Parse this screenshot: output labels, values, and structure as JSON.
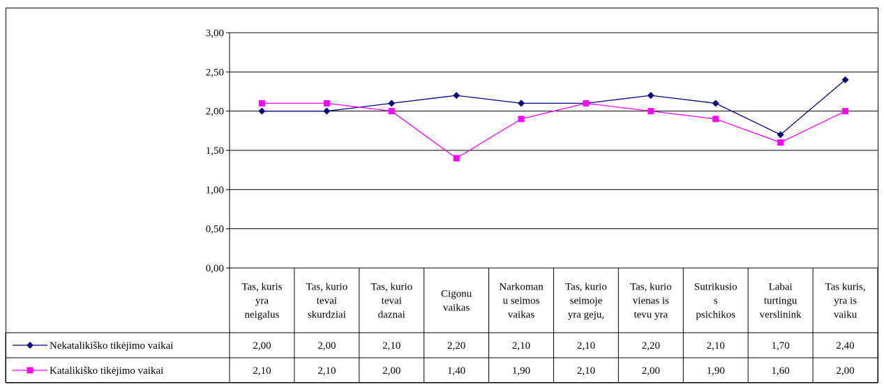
{
  "chart_data": {
    "type": "line",
    "title": "",
    "xlabel": "",
    "ylabel": "",
    "ylim": [
      0,
      3
    ],
    "yticks": [
      "0,00",
      "0,50",
      "1,00",
      "1,50",
      "2,00",
      "2,50",
      "3,00"
    ],
    "grid": true,
    "legend": "data-table-left",
    "categories": [
      [
        "Tas, kuris",
        "yra",
        "neigalus"
      ],
      [
        "Tas, kurio",
        "tevai",
        "skurdziai"
      ],
      [
        "Tas, kurio",
        "tevai",
        "daznai"
      ],
      [
        "Cigonu",
        "vaikas"
      ],
      [
        "Narkoman",
        "u seimos",
        "vaikas"
      ],
      [
        "Tas, kurio",
        "seimoje",
        "yra geju,"
      ],
      [
        "Tas, kurio",
        "vienas is",
        "tevu yra"
      ],
      [
        "Sutrikusio",
        "s",
        "psichikos"
      ],
      [
        "Labai",
        "turtingu",
        "verslinink"
      ],
      [
        "Tas kuris,",
        "yra is",
        "vaiku"
      ]
    ],
    "series": [
      {
        "name": "Nekatalikiško tikėjimo vaikai",
        "color": "#000080",
        "marker": "diamond",
        "values": [
          2.0,
          2.0,
          2.1,
          2.2,
          2.1,
          2.1,
          2.2,
          2.1,
          1.7,
          2.4
        ],
        "labels": [
          "2,00",
          "2,00",
          "2,10",
          "2,20",
          "2,10",
          "2,10",
          "2,20",
          "2,10",
          "1,70",
          "2,40"
        ]
      },
      {
        "name": "Katalikiško tikėjimo vaikai",
        "color": "#FF00FF",
        "marker": "square",
        "values": [
          2.1,
          2.1,
          2.0,
          1.4,
          1.9,
          2.1,
          2.0,
          1.9,
          1.6,
          2.0
        ],
        "labels": [
          "2,10",
          "2,10",
          "2,00",
          "1,40",
          "1,90",
          "2,10",
          "2,00",
          "1,90",
          "1,60",
          "2,00"
        ]
      }
    ]
  }
}
